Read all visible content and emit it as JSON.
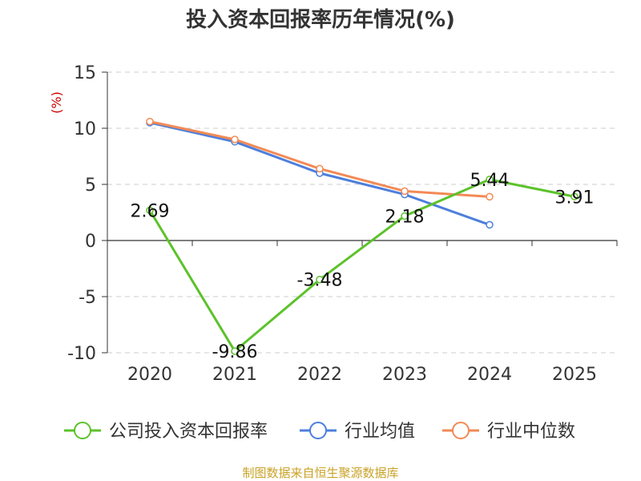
{
  "source": "制图数据来自恒生聚源数据库",
  "colors": {
    "company": "#5cc22b",
    "industry_avg": "#4d7fdc",
    "industry_median": "#f28a55",
    "grid": "#cccccc",
    "axis": "#333333",
    "unit": "#cc0000"
  },
  "chart_data": {
    "type": "line",
    "title": "投入资本回报率历年情况(%)",
    "ylabel": "(%)",
    "xlabel": "",
    "categories": [
      "2020",
      "2021",
      "2022",
      "2023",
      "2024",
      "2025"
    ],
    "ylim": [
      -10,
      15
    ],
    "yticks": [
      15,
      10,
      5,
      0,
      -5,
      -10
    ],
    "grid": true,
    "legend_position": "bottom",
    "series": [
      {
        "name": "公司投入资本回报率",
        "color": "#5cc22b",
        "values": [
          2.69,
          -9.86,
          -3.48,
          2.18,
          5.44,
          3.91
        ],
        "labels": true
      },
      {
        "name": "行业均值",
        "color": "#4d7fdc",
        "values": [
          10.5,
          8.8,
          6.0,
          4.1,
          1.4,
          null
        ],
        "labels": false
      },
      {
        "name": "行业中位数",
        "color": "#f28a55",
        "values": [
          10.6,
          9.0,
          6.4,
          4.4,
          3.9,
          null
        ],
        "labels": false
      }
    ]
  }
}
